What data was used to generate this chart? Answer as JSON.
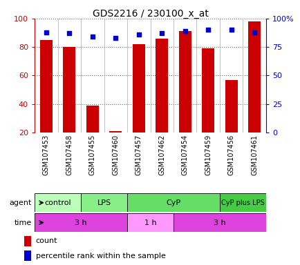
{
  "title": "GDS2216 / 230100_x_at",
  "samples": [
    "GSM107453",
    "GSM107458",
    "GSM107455",
    "GSM107460",
    "GSM107457",
    "GSM107462",
    "GSM107454",
    "GSM107459",
    "GSM107456",
    "GSM107461"
  ],
  "counts": [
    85,
    80,
    39,
    21,
    82,
    86,
    91,
    79,
    57,
    98
  ],
  "percentile_ranks": [
    88,
    87,
    84,
    83,
    86,
    87,
    89,
    90,
    90,
    88
  ],
  "count_color": "#cc0000",
  "percentile_color": "#0000cc",
  "ylim_left": [
    20,
    100
  ],
  "ylim_right": [
    0,
    100
  ],
  "yticks_left": [
    20,
    40,
    60,
    80,
    100
  ],
  "yticks_right": [
    0,
    25,
    50,
    75,
    100
  ],
  "ytick_labels_right": [
    "0",
    "25",
    "50",
    "75",
    "100%"
  ],
  "agent_groups": [
    {
      "label": "control",
      "start": 0,
      "end": 2,
      "color": "#bbffbb"
    },
    {
      "label": "LPS",
      "start": 2,
      "end": 4,
      "color": "#88ee88"
    },
    {
      "label": "CyP",
      "start": 4,
      "end": 8,
      "color": "#66dd66"
    },
    {
      "label": "CyP plus LPS",
      "start": 8,
      "end": 10,
      "color": "#44cc44"
    }
  ],
  "time_groups": [
    {
      "label": "3 h",
      "start": 0,
      "end": 4,
      "color": "#dd44dd"
    },
    {
      "label": "1 h",
      "start": 4,
      "end": 6,
      "color": "#ff99ff"
    },
    {
      "label": "3 h",
      "start": 6,
      "end": 10,
      "color": "#dd44dd"
    }
  ],
  "bar_width": 0.55,
  "background_color": "#ffffff"
}
